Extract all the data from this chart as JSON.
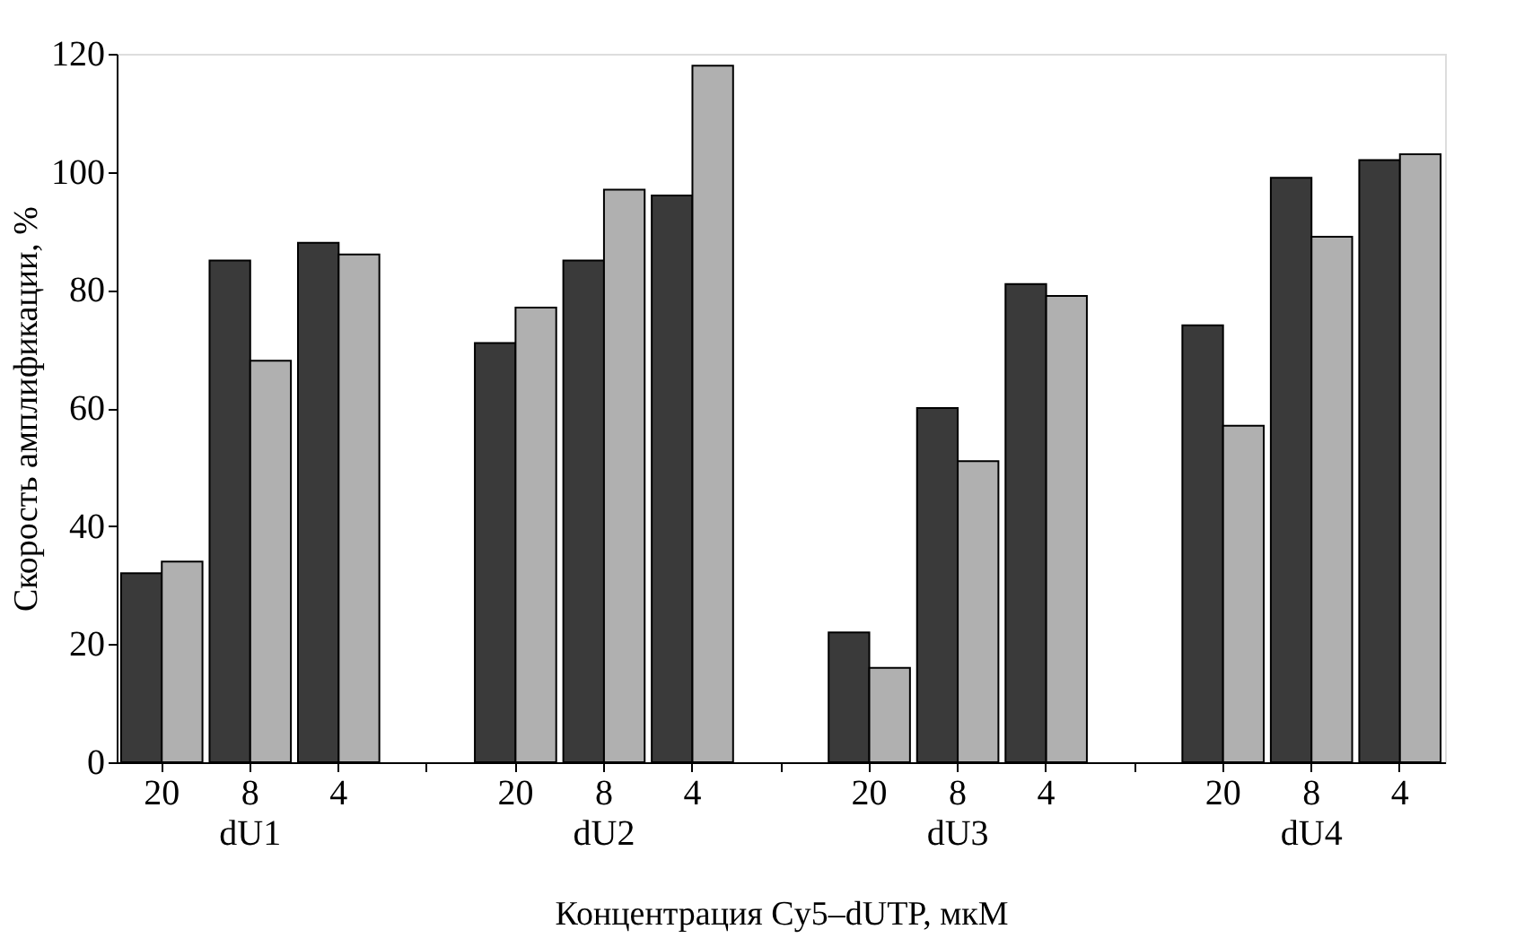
{
  "chart_data": {
    "type": "bar",
    "xlabel": "Концентрация Cy5–dUTP, мкМ",
    "ylabel": "Скорость амплификации, %",
    "categories": [
      "20",
      "8",
      "4",
      null,
      "20",
      "8",
      "4",
      null,
      "20",
      "8",
      "4",
      null,
      "20",
      "8",
      "4"
    ],
    "series": [
      {
        "color": "#3a3a3a",
        "values": [
          32,
          85,
          88,
          null,
          71,
          85,
          96,
          null,
          22,
          60,
          81,
          null,
          74,
          99,
          102
        ]
      },
      {
        "color": "#b0b0b0",
        "values": [
          34,
          68,
          86,
          null,
          77,
          97,
          118,
          null,
          16,
          51,
          79,
          null,
          57,
          89,
          103
        ]
      }
    ],
    "annotations": [
      "dU1",
      "dU2",
      "dU3",
      "dU4"
    ],
    "ylim": [
      0,
      120
    ],
    "yticks": [
      0,
      20,
      40,
      60,
      80,
      100,
      120
    ],
    "grid": false,
    "legend": false
  }
}
